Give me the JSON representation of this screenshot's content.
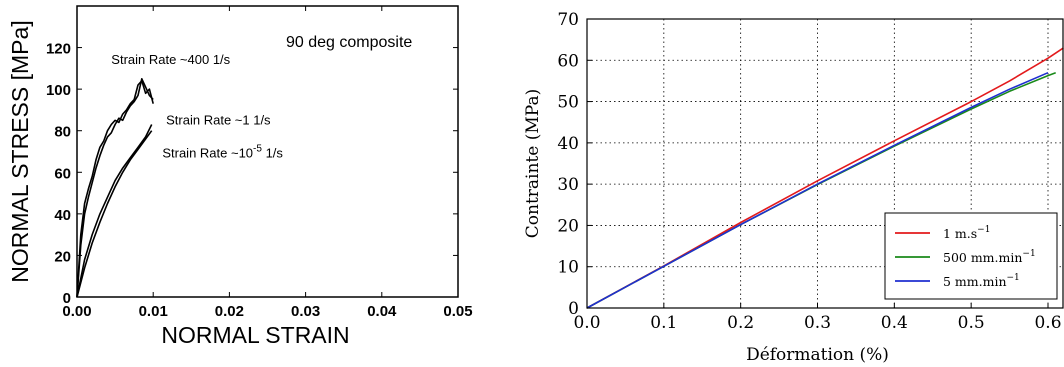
{
  "chart_data": [
    {
      "type": "line",
      "title": "90 deg composite",
      "xlabel": "NORMAL STRAIN",
      "ylabel": "NORMAL STRESS [MPa]",
      "xlim": [
        0,
        0.05
      ],
      "ylim": [
        0,
        140
      ],
      "xticks": [
        "0.00",
        "0.01",
        "0.02",
        "0.03",
        "0.04",
        "0.05"
      ],
      "yticks": [
        "0",
        "20",
        "40",
        "60",
        "80",
        "100",
        "120"
      ],
      "grid": false,
      "annotations": [
        {
          "text": "Strain Rate ~400 1/s",
          "x": 0.0045,
          "y": 112
        },
        {
          "text": "Strain Rate ~1 1/s",
          "x": 0.0117,
          "y": 83
        },
        {
          "text": "Strain Rate ~10",
          "sup": "-5",
          "suffix": " 1/s",
          "x": 0.0112,
          "y": 67
        }
      ],
      "series": [
        {
          "color": "#000000",
          "x": [
            0,
            0.0005,
            0.001,
            0.0015,
            0.002,
            0.0025,
            0.003,
            0.0035,
            0.004,
            0.0045,
            0.005,
            0.0055,
            0.006,
            0.0065,
            0.007,
            0.0075,
            0.008,
            0.0085,
            0.009,
            0.0095,
            0.01
          ],
          "y": [
            0,
            30,
            45,
            52,
            58,
            66,
            72,
            75,
            80,
            83,
            85,
            84,
            88,
            90,
            93,
            95,
            102,
            104,
            98,
            100,
            93
          ]
        },
        {
          "color": "#000000",
          "x": [
            0,
            0.0005,
            0.001,
            0.0015,
            0.002,
            0.0025,
            0.003,
            0.0035,
            0.004,
            0.0045,
            0.005,
            0.0055,
            0.006,
            0.0065,
            0.007,
            0.0075,
            0.008,
            0.0085,
            0.009,
            0.0095,
            0.01
          ],
          "y": [
            0,
            25,
            40,
            48,
            55,
            62,
            68,
            73,
            77,
            79,
            83,
            86,
            85,
            89,
            92,
            94,
            97,
            105,
            101,
            97,
            95
          ]
        },
        {
          "color": "#000000",
          "x": [
            0,
            0.001,
            0.002,
            0.003,
            0.004,
            0.005,
            0.006,
            0.007,
            0.008,
            0.009,
            0.0098
          ],
          "y": [
            0,
            18,
            30,
            40,
            48,
            56,
            62,
            67,
            72,
            77,
            83
          ]
        },
        {
          "color": "#000000",
          "x": [
            0,
            0.001,
            0.002,
            0.003,
            0.004,
            0.005,
            0.006,
            0.007,
            0.008,
            0.009,
            0.0098
          ],
          "y": [
            0,
            14,
            26,
            36,
            45,
            53,
            60,
            66,
            71,
            76,
            80
          ]
        }
      ]
    },
    {
      "type": "line",
      "xlabel": "Déformation (%)",
      "ylabel": "Contrainte (MPa)",
      "xlim": [
        0,
        0.6
      ],
      "ylim": [
        0,
        70
      ],
      "xticks": [
        "0.0",
        "0.1",
        "0.2",
        "0.3",
        "0.4",
        "0.5",
        "0.6"
      ],
      "yticks": [
        "0",
        "10",
        "20",
        "30",
        "40",
        "50",
        "60",
        "70"
      ],
      "grid": true,
      "legend": "bottom-right",
      "series": [
        {
          "name": "1 m.s",
          "name_sup": "−1",
          "color": "#e31a1c",
          "x": [
            0,
            0.1,
            0.2,
            0.3,
            0.4,
            0.5,
            0.55,
            0.6,
            0.62
          ],
          "y": [
            0,
            10.2,
            20.7,
            30.8,
            40.5,
            50,
            55,
            60.5,
            63
          ]
        },
        {
          "name": "500 mm.min",
          "name_sup": "−1",
          "color": "#1a8a1a",
          "x": [
            0,
            0.1,
            0.2,
            0.3,
            0.4,
            0.5,
            0.55,
            0.6,
            0.61
          ],
          "y": [
            0,
            10.1,
            20.2,
            29.9,
            39.2,
            48.2,
            52.5,
            56.3,
            57
          ]
        },
        {
          "name": "5 mm.min",
          "name_sup": "−1",
          "color": "#1f2fd0",
          "x": [
            0,
            0.1,
            0.2,
            0.3,
            0.4,
            0.5,
            0.55,
            0.6
          ],
          "y": [
            0,
            10.1,
            20.2,
            30,
            39.4,
            48.6,
            53,
            57
          ]
        }
      ]
    }
  ]
}
